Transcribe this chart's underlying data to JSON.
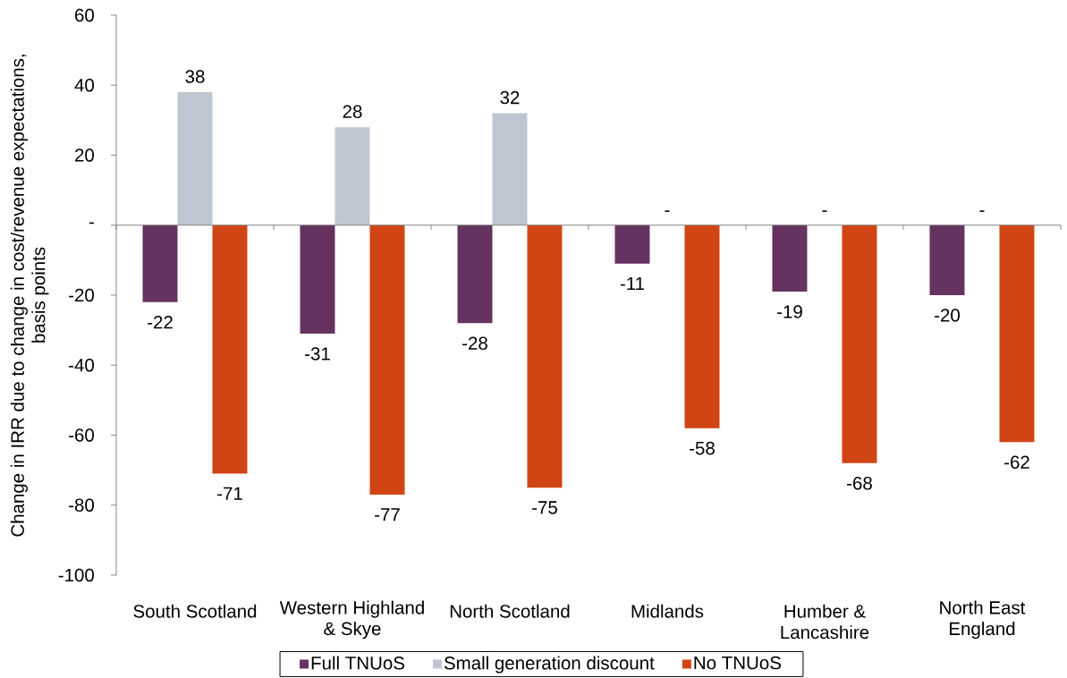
{
  "chart_data": {
    "type": "bar",
    "ylabel": "Change in IRR due to change in cost/revenue expectations, basis points",
    "categories": [
      "South Scotland",
      "Western Highland & Skye",
      "North Scotland",
      "Midlands",
      "Humber & Lancashire",
      "North East England"
    ],
    "series": [
      {
        "name": "Full TNUoS",
        "color": "#663361",
        "values": [
          -22,
          -31,
          -28,
          -11,
          -19,
          -20
        ],
        "value_labels": [
          "-22",
          "-31",
          "-28",
          "-11",
          "-19",
          "-20"
        ]
      },
      {
        "name": "Small generation discount",
        "color": "#c0c6d1",
        "values": [
          38,
          28,
          32,
          0,
          0,
          0
        ],
        "value_labels": [
          "38",
          "28",
          "32",
          "-",
          "-",
          "-"
        ]
      },
      {
        "name": "No TNUoS",
        "color": "#d14515",
        "values": [
          -71,
          -77,
          -75,
          -58,
          -68,
          -62
        ],
        "value_labels": [
          "-71",
          "-77",
          "-75",
          "-58",
          "-68",
          "-62"
        ]
      }
    ],
    "ylim": [
      -100,
      60
    ],
    "yticks": [
      -100,
      -80,
      -60,
      -40,
      -20,
      {
        "value": 0,
        "label": "-"
      },
      20,
      40,
      60
    ],
    "legend": "bottom"
  }
}
